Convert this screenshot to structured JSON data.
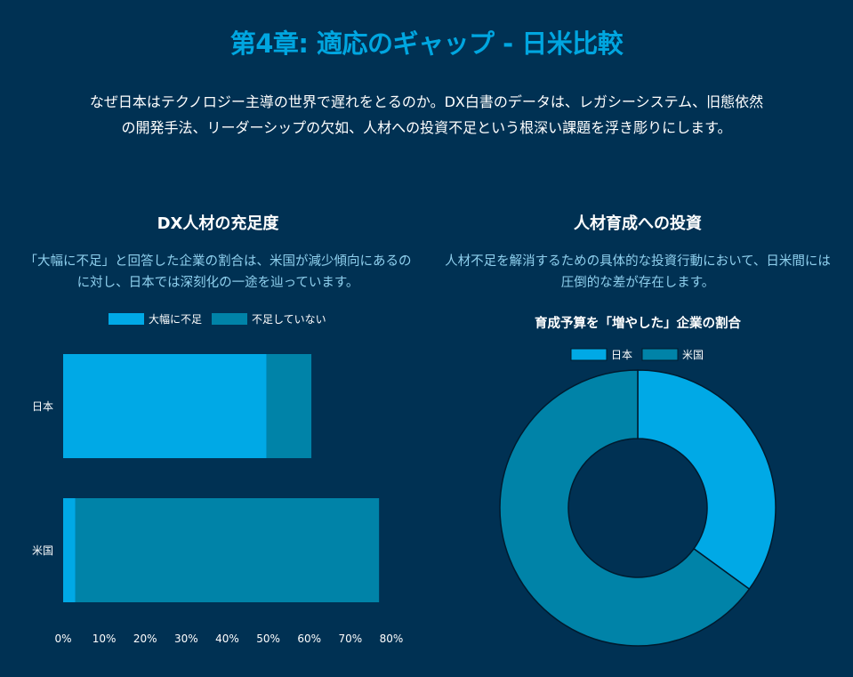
{
  "page": {
    "title": "第4章: 適応のギャップ - 日米比較",
    "intro": "なぜ日本はテクノロジー主導の世界で遅れをとるのか。DX白書のデータは、レガシーシステム、旧態依然の開発手法、リーダーシップの欠如、人材への投資不足という根深い課題を浮き彫りにします。"
  },
  "left_section": {
    "title": "DX人材の充足度",
    "description": "「大幅に不足」と回答した企業の割合は、米国が減少傾向にあるのに対し、日本では深刻化の一途を辿っています。"
  },
  "right_section": {
    "title": "人材育成への投資",
    "description": "人材不足を解消するための具体的な投資行動において、日米間には圧倒的な差が存在します。"
  },
  "colors": {
    "japan": "#00a9e6",
    "us": "#0083a8",
    "background": "#003153",
    "title": "#00a6e0"
  },
  "chart_data": [
    {
      "type": "bar",
      "orientation": "horizontal",
      "stacked": true,
      "categories": [
        "日本",
        "米国"
      ],
      "series": [
        {
          "name": "大幅に不足",
          "values": [
            49.6,
            3
          ]
        },
        {
          "name": "不足していない",
          "values": [
            10.9,
            74
          ]
        }
      ],
      "xlim": [
        0,
        80
      ],
      "xticks": [
        "0%",
        "10%",
        "20%",
        "30%",
        "40%",
        "50%",
        "60%",
        "70%",
        "80%"
      ],
      "legend": "top"
    },
    {
      "type": "pie",
      "donut": true,
      "title": "育成予算を「増やした」企業の割合",
      "labels": [
        "日本",
        "米国"
      ],
      "values": [
        35,
        65
      ],
      "legend": "top"
    }
  ]
}
